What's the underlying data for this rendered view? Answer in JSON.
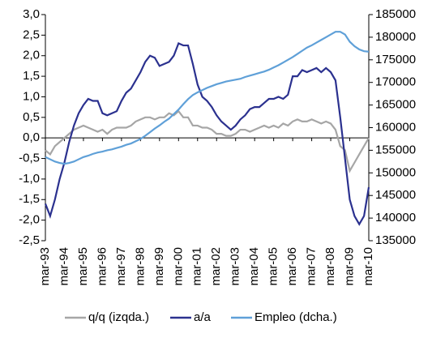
{
  "chart_data": {
    "type": "line",
    "categories": [
      "mar-93",
      null,
      null,
      null,
      "mar-94",
      null,
      null,
      null,
      "mar-95",
      null,
      null,
      null,
      "mar-96",
      null,
      null,
      null,
      "mar-97",
      null,
      null,
      null,
      "mar-98",
      null,
      null,
      null,
      "mar-99",
      null,
      null,
      null,
      "mar-00",
      null,
      null,
      null,
      "mar-01",
      null,
      null,
      null,
      "mar-02",
      null,
      null,
      null,
      "mar-03",
      null,
      null,
      null,
      "mar-04",
      null,
      null,
      null,
      "mar-05",
      null,
      null,
      null,
      "mar-06",
      null,
      null,
      null,
      "mar-07",
      null,
      null,
      null,
      "mar-08",
      null,
      null,
      null,
      "mar-09",
      null,
      null,
      null,
      "mar-10"
    ],
    "series": [
      {
        "name": "q/q (izqda.)",
        "color": "#a6a6a6",
        "values": [
          -0.3,
          -0.4,
          -0.2,
          -0.1,
          0.0,
          0.1,
          0.2,
          0.25,
          0.3,
          0.25,
          0.2,
          0.15,
          0.2,
          0.1,
          0.2,
          0.25,
          0.25,
          0.25,
          0.3,
          0.4,
          0.45,
          0.5,
          0.5,
          0.45,
          0.5,
          0.5,
          0.6,
          0.55,
          0.65,
          0.5,
          0.5,
          0.3,
          0.3,
          0.25,
          0.25,
          0.2,
          0.1,
          0.1,
          0.05,
          0.05,
          0.1,
          0.2,
          0.2,
          0.15,
          0.2,
          0.25,
          0.3,
          0.25,
          0.3,
          0.25,
          0.35,
          0.3,
          0.4,
          0.45,
          0.4,
          0.4,
          0.45,
          0.4,
          0.35,
          0.4,
          0.35,
          0.2,
          -0.2,
          -0.3,
          -0.8,
          -0.6,
          -0.4,
          -0.2,
          0.0
        ]
      },
      {
        "name": "a/a",
        "color": "#2b318f",
        "values": [
          -1.6,
          -1.9,
          -1.5,
          -1.0,
          -0.6,
          -0.1,
          0.3,
          0.6,
          0.8,
          0.95,
          0.9,
          0.9,
          0.6,
          0.55,
          0.6,
          0.65,
          0.9,
          1.1,
          1.2,
          1.4,
          1.6,
          1.85,
          2.0,
          1.95,
          1.75,
          1.8,
          1.85,
          2.0,
          2.3,
          2.25,
          2.25,
          1.8,
          1.3,
          1.0,
          0.9,
          0.75,
          0.55,
          0.4,
          0.3,
          0.2,
          0.3,
          0.45,
          0.55,
          0.7,
          0.75,
          0.75,
          0.85,
          0.95,
          0.95,
          1.0,
          0.95,
          1.05,
          1.5,
          1.5,
          1.65,
          1.6,
          1.65,
          1.7,
          1.6,
          1.7,
          1.6,
          1.4,
          0.5,
          -0.5,
          -1.5,
          -1.9,
          -2.1,
          -1.9,
          -1.2
        ]
      },
      {
        "name": "Empleo (dcha.)",
        "color": "#5fa0d8",
        "axis": "y2",
        "values": [
          153500,
          153000,
          152500,
          152200,
          152000,
          152200,
          152500,
          153000,
          153500,
          153800,
          154200,
          154500,
          154700,
          155000,
          155200,
          155500,
          155800,
          156200,
          156500,
          157000,
          157500,
          158200,
          159000,
          159800,
          160500,
          161300,
          162000,
          163000,
          164000,
          165200,
          166300,
          167200,
          167800,
          168300,
          168800,
          169200,
          169600,
          169900,
          170200,
          170400,
          170600,
          170800,
          171200,
          171500,
          171800,
          172100,
          172400,
          172800,
          173300,
          173800,
          174400,
          175000,
          175600,
          176300,
          177000,
          177700,
          178200,
          178800,
          179400,
          180000,
          180600,
          181200,
          181200,
          180600,
          179000,
          178000,
          177300,
          176900,
          176800
        ]
      }
    ],
    "ylim": [
      -2.5,
      3.0
    ],
    "yticks": [
      {
        "value": -2.5,
        "label": "-2,5"
      },
      {
        "value": -2.0,
        "label": "-2,0"
      },
      {
        "value": -1.5,
        "label": "-1,5"
      },
      {
        "value": -1.0,
        "label": "-1,0"
      },
      {
        "value": -0.5,
        "label": "-0,5"
      },
      {
        "value": 0.0,
        "label": "0,0"
      },
      {
        "value": 0.5,
        "label": "0,5"
      },
      {
        "value": 1.0,
        "label": "1,0"
      },
      {
        "value": 1.5,
        "label": "1,5"
      },
      {
        "value": 2.0,
        "label": "2,0"
      },
      {
        "value": 2.5,
        "label": "2,5"
      },
      {
        "value": 3.0,
        "label": "3,0"
      }
    ],
    "y2lim": [
      135000,
      185000
    ],
    "y2ticks": [
      135000,
      140000,
      145000,
      150000,
      155000,
      160000,
      165000,
      170000,
      175000,
      180000,
      185000
    ],
    "grid": false,
    "legend": "bottom"
  }
}
